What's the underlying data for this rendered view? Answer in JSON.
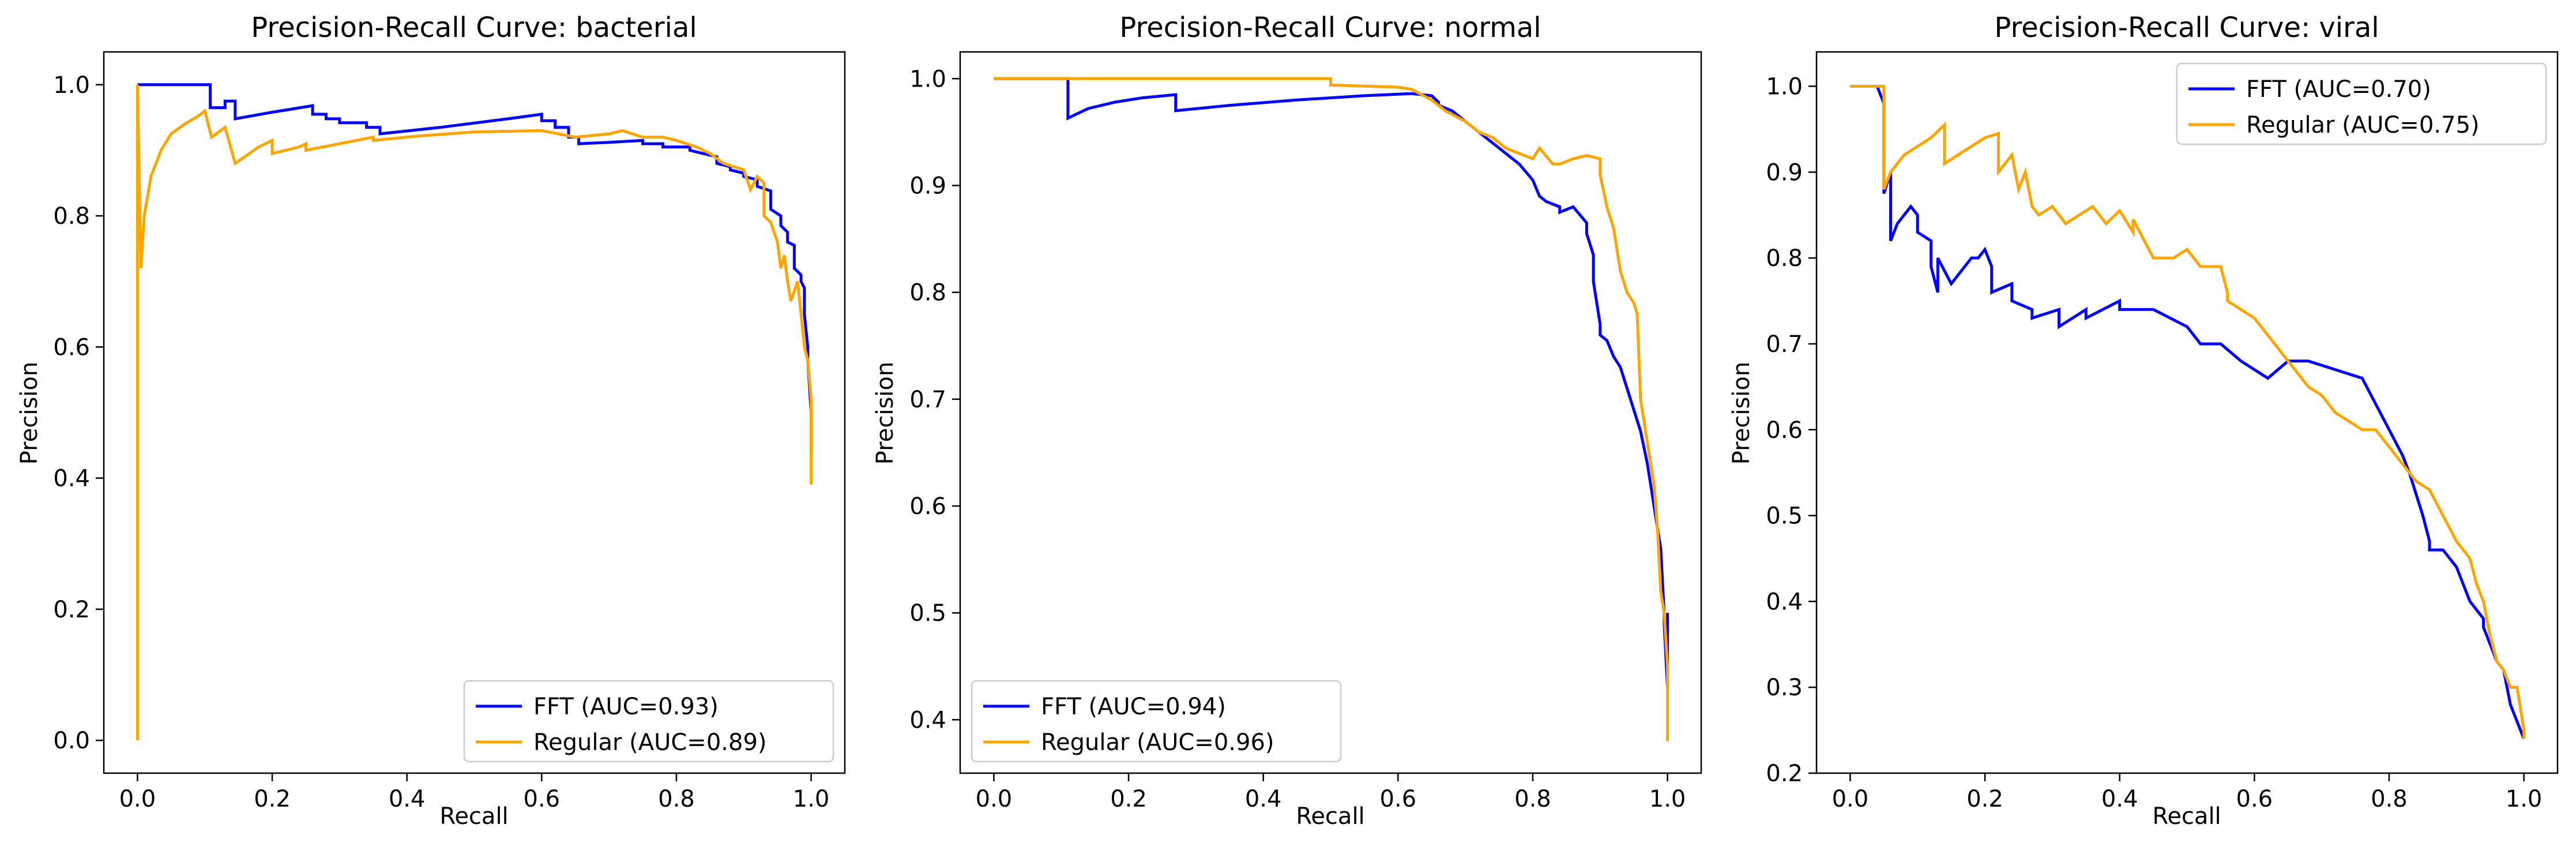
{
  "chart_data": [
    {
      "type": "line",
      "title": "Precision-Recall Curve: bacterial",
      "xlabel": "Recall",
      "ylabel": "Precision",
      "xlim": [
        -0.05,
        1.05
      ],
      "ylim": [
        -0.05,
        1.05
      ],
      "xticks": [
        0.0,
        0.2,
        0.4,
        0.6,
        0.8,
        1.0
      ],
      "yticks": [
        0.0,
        0.2,
        0.4,
        0.6,
        0.8,
        1.0
      ],
      "grid": false,
      "legend_position": "lower-right",
      "series": [
        {
          "name": "FFT (AUC=0.93)",
          "color": "#0000ff",
          "x": [
            0.0,
            0.108,
            0.108,
            0.13,
            0.13,
            0.145,
            0.145,
            0.2,
            0.26,
            0.26,
            0.28,
            0.28,
            0.3,
            0.3,
            0.34,
            0.34,
            0.36,
            0.36,
            0.45,
            0.55,
            0.6,
            0.6,
            0.62,
            0.62,
            0.64,
            0.64,
            0.655,
            0.655,
            0.7,
            0.75,
            0.75,
            0.78,
            0.78,
            0.82,
            0.82,
            0.86,
            0.86,
            0.88,
            0.88,
            0.9,
            0.9,
            0.92,
            0.92,
            0.94,
            0.94,
            0.955,
            0.955,
            0.965,
            0.965,
            0.975,
            0.975,
            0.985,
            0.985,
            0.99,
            0.99,
            0.995,
            0.995,
            1.0,
            1.0
          ],
          "y": [
            1.0,
            1.0,
            0.965,
            0.965,
            0.975,
            0.975,
            0.948,
            0.958,
            0.968,
            0.955,
            0.955,
            0.948,
            0.948,
            0.942,
            0.942,
            0.935,
            0.935,
            0.925,
            0.935,
            0.948,
            0.955,
            0.945,
            0.945,
            0.935,
            0.935,
            0.92,
            0.92,
            0.91,
            0.912,
            0.915,
            0.91,
            0.91,
            0.905,
            0.905,
            0.9,
            0.89,
            0.88,
            0.875,
            0.87,
            0.865,
            0.86,
            0.855,
            0.845,
            0.838,
            0.81,
            0.8,
            0.785,
            0.775,
            0.76,
            0.755,
            0.72,
            0.71,
            0.7,
            0.69,
            0.65,
            0.6,
            0.58,
            0.5,
            0.44
          ]
        },
        {
          "name": "Regular (AUC=0.89)",
          "color": "#ffa500",
          "x": [
            0.0,
            0.0,
            0.005,
            0.01,
            0.02,
            0.035,
            0.05,
            0.07,
            0.09,
            0.1,
            0.1,
            0.11,
            0.11,
            0.13,
            0.13,
            0.145,
            0.145,
            0.18,
            0.2,
            0.2,
            0.24,
            0.25,
            0.25,
            0.3,
            0.35,
            0.35,
            0.42,
            0.5,
            0.6,
            0.65,
            0.7,
            0.72,
            0.75,
            0.78,
            0.8,
            0.83,
            0.85,
            0.87,
            0.9,
            0.91,
            0.92,
            0.93,
            0.93,
            0.94,
            0.95,
            0.955,
            0.96,
            0.965,
            0.97,
            0.98,
            0.985,
            0.99,
            0.995,
            1.0,
            1.0
          ],
          "y": [
            0.0,
            1.0,
            0.72,
            0.8,
            0.86,
            0.9,
            0.925,
            0.94,
            0.952,
            0.96,
            0.96,
            0.92,
            0.92,
            0.935,
            0.935,
            0.88,
            0.88,
            0.905,
            0.915,
            0.895,
            0.905,
            0.91,
            0.9,
            0.91,
            0.92,
            0.915,
            0.922,
            0.928,
            0.93,
            0.92,
            0.925,
            0.93,
            0.92,
            0.92,
            0.915,
            0.905,
            0.895,
            0.88,
            0.87,
            0.84,
            0.86,
            0.85,
            0.8,
            0.79,
            0.76,
            0.72,
            0.74,
            0.7,
            0.67,
            0.7,
            0.65,
            0.6,
            0.58,
            0.52,
            0.39
          ]
        }
      ]
    },
    {
      "type": "line",
      "title": "Precision-Recall Curve: normal",
      "xlabel": "Recall",
      "ylabel": "Precision",
      "xlim": [
        -0.05,
        1.05
      ],
      "ylim": [
        0.35,
        1.025
      ],
      "xticks": [
        0.0,
        0.2,
        0.4,
        0.6,
        0.8,
        1.0
      ],
      "yticks": [
        0.4,
        0.5,
        0.6,
        0.7,
        0.8,
        0.9,
        1.0
      ],
      "grid": false,
      "legend_position": "lower-left",
      "series": [
        {
          "name": "FFT (AUC=0.94)",
          "color": "#0000ff",
          "x": [
            0.0,
            0.11,
            0.11,
            0.14,
            0.18,
            0.22,
            0.27,
            0.27,
            0.35,
            0.45,
            0.55,
            0.62,
            0.65,
            0.66,
            0.66,
            0.68,
            0.7,
            0.72,
            0.74,
            0.76,
            0.78,
            0.8,
            0.81,
            0.82,
            0.84,
            0.84,
            0.86,
            0.88,
            0.88,
            0.89,
            0.89,
            0.9,
            0.9,
            0.91,
            0.92,
            0.93,
            0.94,
            0.95,
            0.96,
            0.97,
            0.975,
            0.98,
            0.985,
            0.99,
            0.995,
            0.995,
            1.0,
            1.0
          ],
          "y": [
            1.0,
            1.0,
            0.963,
            0.972,
            0.978,
            0.982,
            0.985,
            0.97,
            0.975,
            0.98,
            0.984,
            0.986,
            0.984,
            0.978,
            0.975,
            0.97,
            0.96,
            0.95,
            0.94,
            0.93,
            0.92,
            0.905,
            0.89,
            0.885,
            0.88,
            0.875,
            0.88,
            0.865,
            0.855,
            0.835,
            0.81,
            0.77,
            0.76,
            0.755,
            0.74,
            0.73,
            0.71,
            0.69,
            0.67,
            0.64,
            0.62,
            0.6,
            0.58,
            0.56,
            0.5,
            0.49,
            0.43,
            0.5
          ]
        },
        {
          "name": "Regular (AUC=0.96)",
          "color": "#ffa500",
          "x": [
            0.0,
            0.5,
            0.5,
            0.6,
            0.62,
            0.65,
            0.67,
            0.7,
            0.72,
            0.74,
            0.76,
            0.78,
            0.8,
            0.81,
            0.83,
            0.84,
            0.86,
            0.88,
            0.9,
            0.9,
            0.91,
            0.92,
            0.93,
            0.94,
            0.95,
            0.955,
            0.96,
            0.97,
            0.98,
            0.985,
            0.99,
            0.995,
            1.0,
            1.0
          ],
          "y": [
            1.0,
            1.0,
            0.994,
            0.992,
            0.99,
            0.98,
            0.97,
            0.96,
            0.95,
            0.945,
            0.935,
            0.93,
            0.925,
            0.935,
            0.92,
            0.92,
            0.925,
            0.928,
            0.925,
            0.91,
            0.88,
            0.86,
            0.82,
            0.8,
            0.79,
            0.78,
            0.7,
            0.66,
            0.62,
            0.58,
            0.52,
            0.5,
            0.45,
            0.38
          ]
        }
      ]
    },
    {
      "type": "line",
      "title": "Precision-Recall Curve: viral",
      "xlabel": "Recall",
      "ylabel": "Precision",
      "xlim": [
        -0.05,
        1.05
      ],
      "ylim": [
        0.2,
        1.04
      ],
      "xticks": [
        0.0,
        0.2,
        0.4,
        0.6,
        0.8,
        1.0
      ],
      "yticks": [
        0.2,
        0.3,
        0.4,
        0.5,
        0.6,
        0.7,
        0.8,
        0.9,
        1.0
      ],
      "grid": false,
      "legend_position": "upper-right",
      "series": [
        {
          "name": "FFT (AUC=0.70)",
          "color": "#0000ff",
          "x": [
            0.0,
            0.04,
            0.05,
            0.05,
            0.06,
            0.06,
            0.07,
            0.08,
            0.09,
            0.1,
            0.1,
            0.12,
            0.12,
            0.13,
            0.13,
            0.15,
            0.16,
            0.17,
            0.18,
            0.19,
            0.2,
            0.21,
            0.21,
            0.24,
            0.24,
            0.27,
            0.27,
            0.31,
            0.31,
            0.35,
            0.35,
            0.4,
            0.4,
            0.45,
            0.5,
            0.52,
            0.55,
            0.58,
            0.6,
            0.62,
            0.65,
            0.68,
            0.72,
            0.76,
            0.78,
            0.8,
            0.82,
            0.83,
            0.85,
            0.86,
            0.86,
            0.88,
            0.89,
            0.9,
            0.92,
            0.94,
            0.94,
            0.95,
            0.96,
            0.97,
            0.98,
            0.99,
            1.0
          ],
          "y": [
            1.0,
            1.0,
            0.98,
            0.875,
            0.9,
            0.82,
            0.84,
            0.85,
            0.86,
            0.85,
            0.83,
            0.82,
            0.79,
            0.76,
            0.8,
            0.77,
            0.78,
            0.79,
            0.8,
            0.8,
            0.81,
            0.79,
            0.76,
            0.77,
            0.75,
            0.74,
            0.73,
            0.74,
            0.72,
            0.74,
            0.73,
            0.75,
            0.74,
            0.74,
            0.72,
            0.7,
            0.7,
            0.68,
            0.67,
            0.66,
            0.68,
            0.68,
            0.67,
            0.66,
            0.63,
            0.6,
            0.57,
            0.55,
            0.5,
            0.47,
            0.46,
            0.46,
            0.45,
            0.44,
            0.4,
            0.38,
            0.37,
            0.35,
            0.33,
            0.32,
            0.28,
            0.26,
            0.24
          ]
        },
        {
          "name": "Regular (AUC=0.75)",
          "color": "#ffa500",
          "x": [
            0.0,
            0.05,
            0.05,
            0.06,
            0.08,
            0.1,
            0.12,
            0.14,
            0.14,
            0.16,
            0.18,
            0.2,
            0.22,
            0.22,
            0.24,
            0.25,
            0.26,
            0.27,
            0.28,
            0.3,
            0.32,
            0.34,
            0.36,
            0.38,
            0.4,
            0.42,
            0.42,
            0.45,
            0.48,
            0.5,
            0.52,
            0.55,
            0.56,
            0.56,
            0.58,
            0.6,
            0.62,
            0.64,
            0.65,
            0.66,
            0.68,
            0.7,
            0.72,
            0.74,
            0.76,
            0.78,
            0.8,
            0.82,
            0.84,
            0.86,
            0.88,
            0.9,
            0.92,
            0.93,
            0.94,
            0.95,
            0.96,
            0.97,
            0.98,
            0.99,
            1.0,
            1.0
          ],
          "y": [
            1.0,
            1.0,
            0.88,
            0.9,
            0.92,
            0.93,
            0.94,
            0.955,
            0.91,
            0.92,
            0.93,
            0.94,
            0.945,
            0.9,
            0.92,
            0.88,
            0.9,
            0.86,
            0.85,
            0.86,
            0.84,
            0.85,
            0.86,
            0.84,
            0.855,
            0.83,
            0.845,
            0.8,
            0.8,
            0.81,
            0.79,
            0.79,
            0.76,
            0.75,
            0.74,
            0.73,
            0.71,
            0.69,
            0.68,
            0.67,
            0.65,
            0.64,
            0.62,
            0.61,
            0.6,
            0.6,
            0.58,
            0.56,
            0.54,
            0.53,
            0.5,
            0.47,
            0.45,
            0.42,
            0.4,
            0.36,
            0.33,
            0.32,
            0.3,
            0.3,
            0.25,
            0.24
          ]
        }
      ]
    }
  ]
}
